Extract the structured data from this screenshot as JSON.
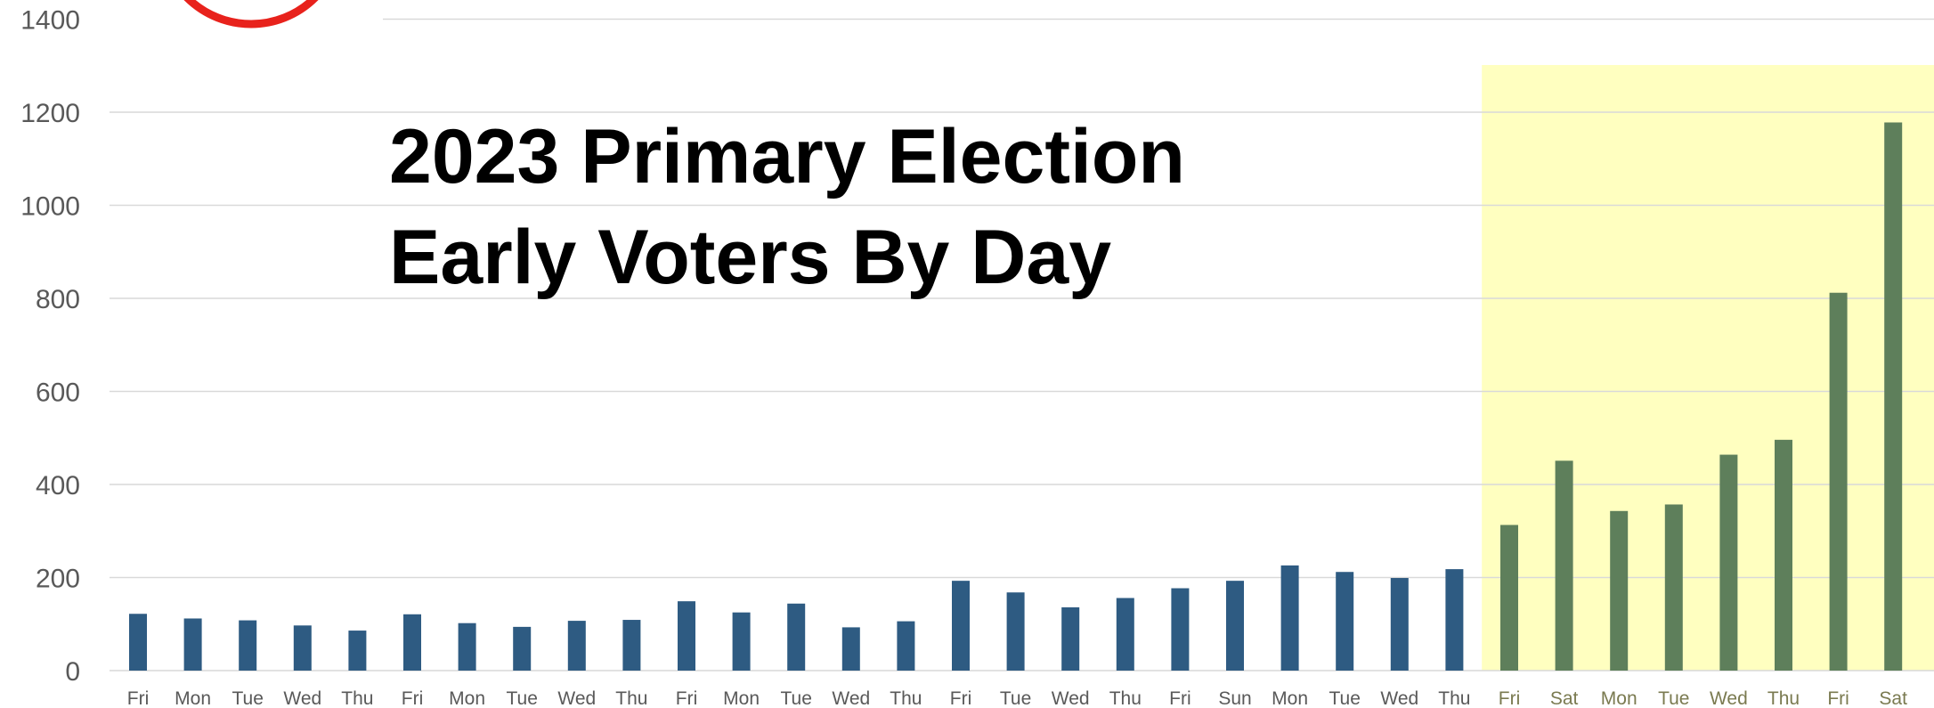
{
  "chart_data": {
    "type": "bar",
    "title_lines": [
      "2023 Primary Election",
      "Early Voters By Day"
    ],
    "xlabel": "",
    "ylabel": "",
    "ylim": [
      0,
      1400
    ],
    "yticks": [
      0,
      200,
      400,
      600,
      800,
      1000,
      1200,
      1400
    ],
    "grid": true,
    "legend": "none",
    "categories": [
      "Fri",
      "Mon",
      "Tue",
      "Wed",
      "Thu",
      "Fri",
      "Mon",
      "Tue",
      "Wed",
      "Thu",
      "Fri",
      "Mon",
      "Tue",
      "Wed",
      "Thu",
      "Fri",
      "Tue",
      "Wed",
      "Thu",
      "Fri",
      "Sun",
      "Mon",
      "Tue",
      "Wed",
      "Thu",
      "Fri",
      "Sat",
      "Mon",
      "Tue",
      "Wed",
      "Thu",
      "Fri",
      "Sat"
    ],
    "values": [
      122,
      112,
      108,
      97,
      86,
      121,
      102,
      94,
      107,
      109,
      149,
      125,
      144,
      93,
      106,
      193,
      168,
      136,
      156,
      177,
      193,
      226,
      212,
      199,
      218,
      313,
      451,
      343,
      357,
      464,
      496,
      812,
      1178
    ],
    "highlight_from_index": 25,
    "colors": {
      "bar": "#2e5b82",
      "bar_highlight": "#5e7f5b",
      "highlight_band": "#ffffc0",
      "grid": "#d9d9d9",
      "logo_ring": "#e8221c"
    }
  }
}
